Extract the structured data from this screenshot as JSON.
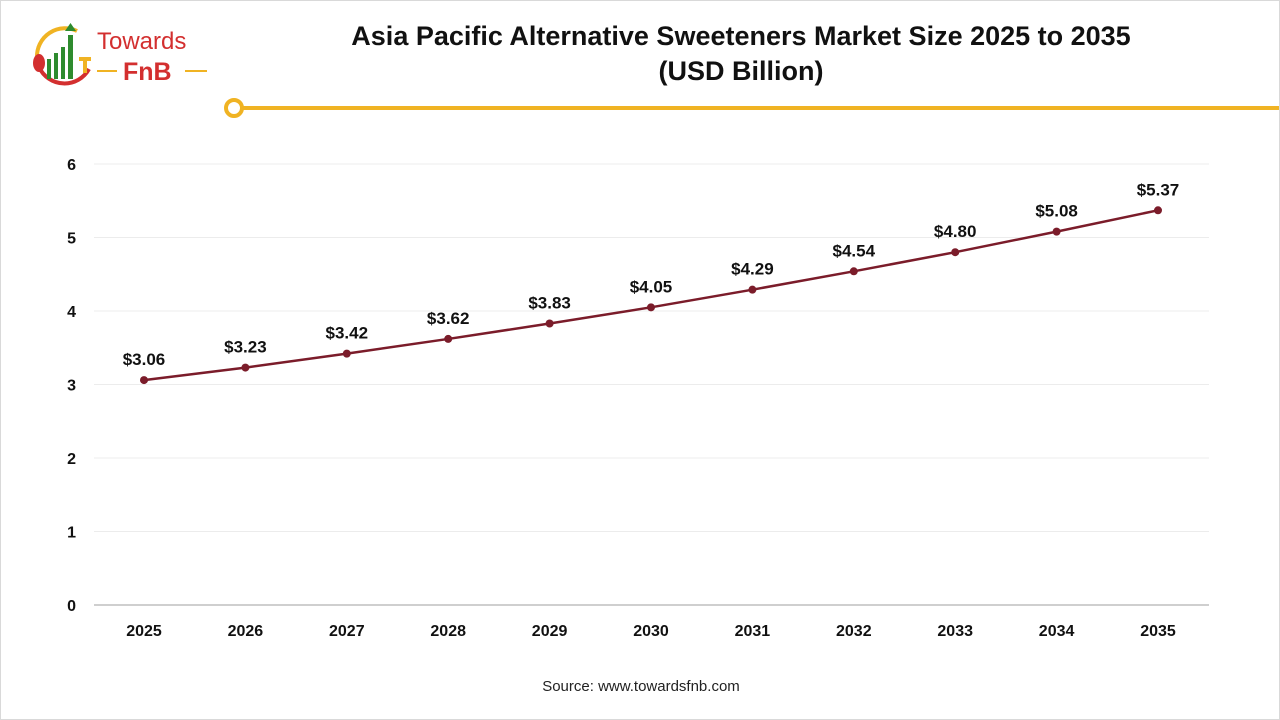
{
  "header": {
    "title_line1": "Asia Pacific Alternative Sweeteners Market Size 2025 to 2035",
    "title_line2": "(USD Billion)"
  },
  "logo": {
    "text_top": "Towards",
    "text_bottom": "FnB"
  },
  "footer": {
    "source": "Source: www.towardsfnb.com"
  },
  "colors": {
    "line": "#7b1c2a",
    "accent": "#f0b323",
    "logo_red": "#d32f2f",
    "logo_green": "#2e8b2e"
  },
  "chart_data": {
    "type": "line",
    "title": "Asia Pacific Alternative Sweeteners Market Size 2025 to 2035 (USD Billion)",
    "categories": [
      "2025",
      "2026",
      "2027",
      "2028",
      "2029",
      "2030",
      "2031",
      "2032",
      "2033",
      "2034",
      "2035"
    ],
    "values": [
      3.06,
      3.23,
      3.42,
      3.62,
      3.83,
      4.05,
      4.29,
      4.54,
      4.8,
      5.08,
      5.37
    ],
    "data_labels": [
      "$3.06",
      "$3.23",
      "$3.42",
      "$3.62",
      "$3.83",
      "$4.05",
      "$4.29",
      "$4.54",
      "$4.80",
      "$5.08",
      "$5.37"
    ],
    "yticks": [
      0,
      1,
      2,
      3,
      4,
      5,
      6
    ],
    "ylim": [
      0,
      6
    ],
    "grid": true,
    "xlabel": "",
    "ylabel": ""
  }
}
